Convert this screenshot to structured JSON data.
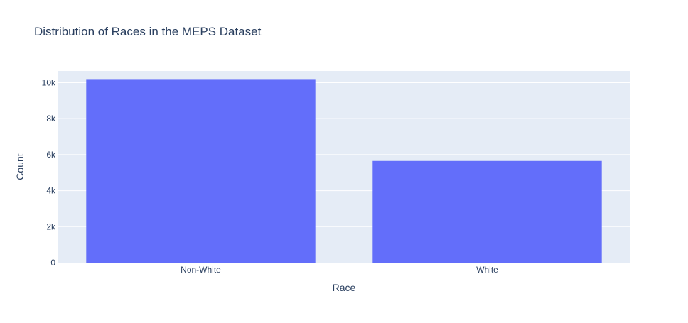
{
  "chart_data": {
    "type": "bar",
    "title": "Distribution of Races in the MEPS Dataset",
    "xlabel": "Race",
    "ylabel": "Count",
    "categories": [
      "Non-White",
      "White"
    ],
    "values": [
      10200,
      5650
    ],
    "ylim": [
      0,
      10650
    ],
    "yticks": [
      0,
      2000,
      4000,
      6000,
      8000,
      10000
    ],
    "ytick_labels": [
      "0",
      "2k",
      "4k",
      "6k",
      "8k",
      "10k"
    ],
    "grid": true,
    "legend": "none",
    "colors": {
      "bar": "#636efa",
      "plot_background": "#e5ecf6",
      "grid": "#ffffff",
      "text": "#2a3f5f"
    }
  }
}
